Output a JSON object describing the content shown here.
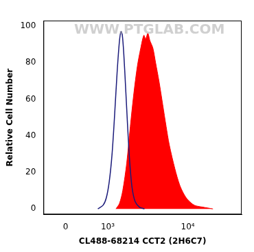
{
  "chart_data": {
    "type": "line",
    "x_label": "CL488-68214 CCT2 (2H6C7)",
    "y_label": "Relative Cell Number",
    "annotations": [
      "WWW.PTGLAB.COM"
    ],
    "series": [
      {
        "color": "#1a1a7a",
        "type": "line",
        "x": [
          700,
          850,
          950,
          1050,
          1150,
          1250,
          1350,
          1450,
          1520,
          1580,
          1650,
          1750,
          1850,
          1950,
          2100,
          2300,
          2600,
          3000
        ],
        "values": [
          0,
          2,
          6,
          15,
          30,
          52,
          75,
          92,
          97,
          95,
          85,
          65,
          45,
          28,
          12,
          4,
          1,
          0
        ]
      },
      {
        "color": "#ff0000",
        "type": "area",
        "x": [
          1300,
          1450,
          1600,
          1800,
          2000,
          2200,
          2450,
          2700,
          2950,
          3100,
          3300,
          3500,
          3800,
          4100,
          4500,
          5000,
          5500,
          6000,
          7000,
          8000,
          9000,
          10000,
          12000,
          15000,
          20000
        ],
        "values": [
          0,
          3,
          10,
          25,
          45,
          62,
          78,
          88,
          95,
          93,
          96,
          92,
          88,
          80,
          70,
          57,
          45,
          35,
          22,
          13,
          8,
          5,
          2,
          1,
          0
        ]
      }
    ],
    "xlim": [
      -450,
      44000
    ],
    "xticks": [
      0,
      {
        "value": 1000,
        "label": "10³"
      },
      {
        "value": 10000,
        "label": "10⁴"
      }
    ],
    "ylim": [
      -3,
      103
    ],
    "yticks": [
      0,
      20,
      40,
      60,
      80,
      100
    ],
    "grid": false
  }
}
